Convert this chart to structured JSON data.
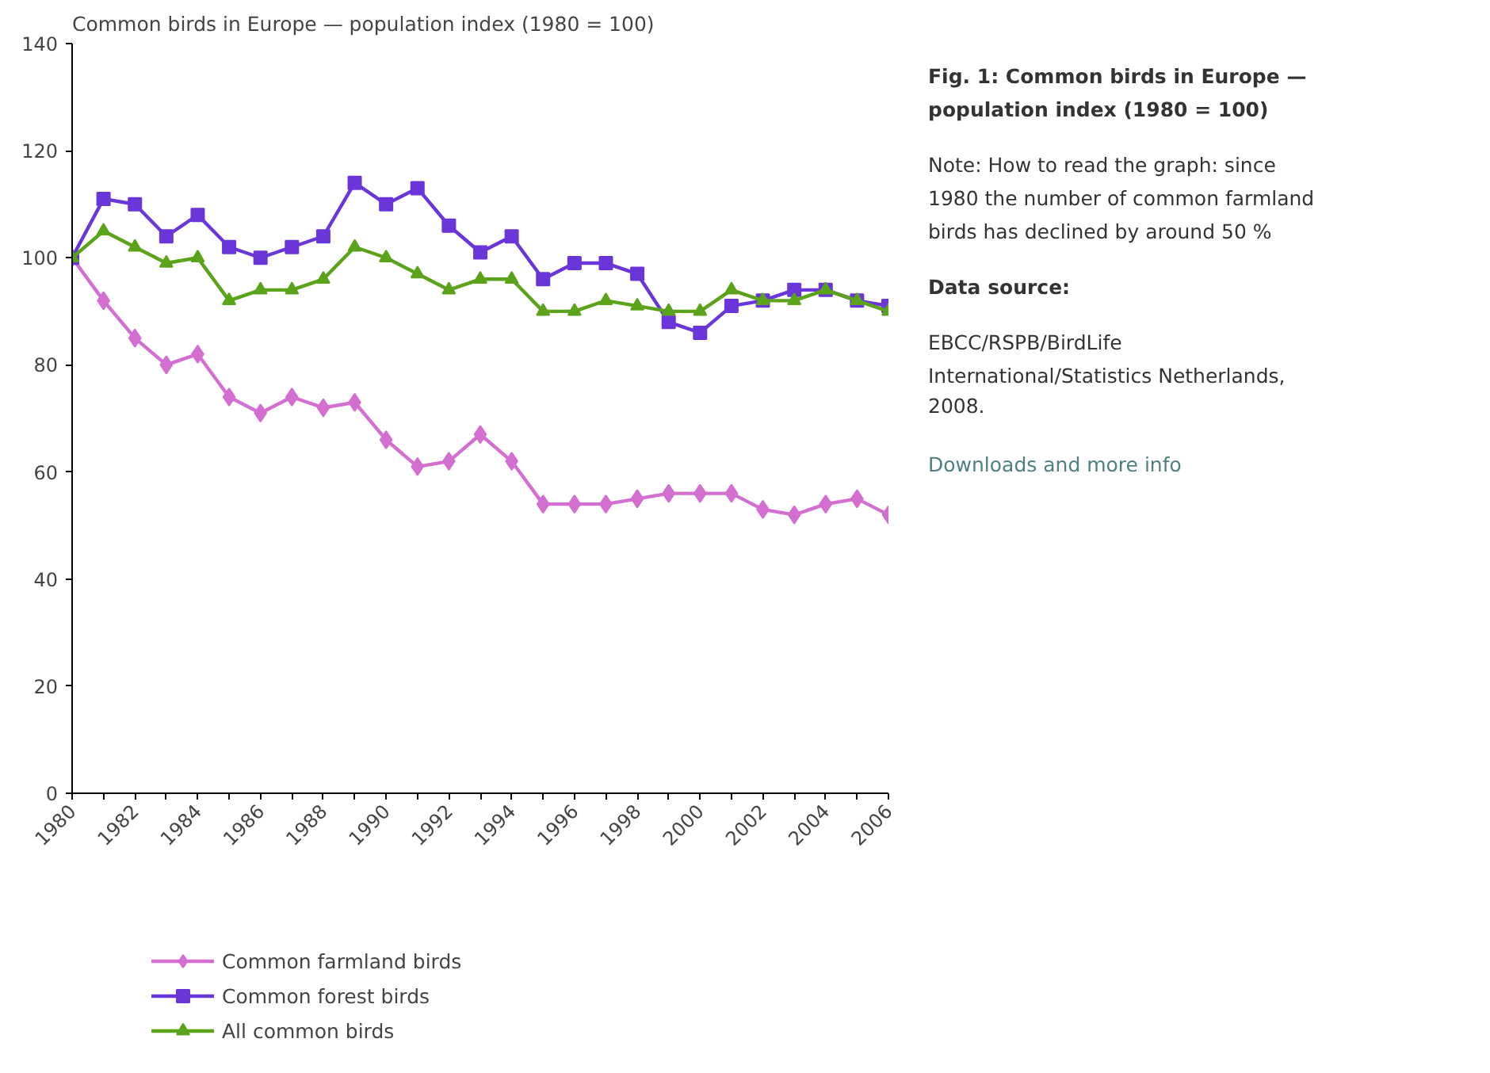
{
  "chart_data": {
    "type": "line",
    "title": "Common birds in Europe — population index (1980 = 100)",
    "subtitle": "Fig. 1: Common birds in Europe — population index (1980 = 100)",
    "x": [
      1980,
      1981,
      1982,
      1983,
      1984,
      1985,
      1986,
      1987,
      1988,
      1989,
      1990,
      1991,
      1992,
      1993,
      1994,
      1995,
      1996,
      1997,
      1998,
      1999,
      2000,
      2001,
      2002,
      2003,
      2004,
      2005,
      2006
    ],
    "series": [
      {
        "name": "Common farmland birds",
        "color": "#d36fd0",
        "marker": "diamond",
        "values": [
          100,
          92,
          85,
          80,
          82,
          74,
          71,
          74,
          72,
          73,
          66,
          61,
          62,
          67,
          62,
          54,
          54,
          54,
          55,
          56,
          56,
          56,
          53,
          52,
          54,
          55,
          52
        ]
      },
      {
        "name": "Common forest birds",
        "color": "#6a35d9",
        "marker": "square",
        "values": [
          100,
          111,
          110,
          104,
          108,
          102,
          100,
          102,
          104,
          114,
          110,
          113,
          106,
          101,
          104,
          96,
          99,
          99,
          97,
          88,
          86,
          91,
          92,
          94,
          94,
          92,
          91
        ]
      },
      {
        "name": "All common birds",
        "color": "#5aa31a",
        "marker": "triangle",
        "values": [
          100,
          105,
          102,
          99,
          100,
          92,
          94,
          94,
          96,
          102,
          100,
          97,
          94,
          96,
          96,
          90,
          90,
          92,
          91,
          90,
          90,
          94,
          92,
          92,
          94,
          92,
          90
        ]
      }
    ],
    "xlim": [
      1980,
      2006
    ],
    "ylim": [
      0,
      140
    ],
    "xticks": [
      1980,
      {
        "value": 1981,
        "label": null
      },
      1982,
      {
        "value": 1983,
        "label": null
      },
      1984,
      {
        "value": 1985,
        "label": null
      },
      1986,
      {
        "value": 1987,
        "label": null
      },
      1988,
      {
        "value": 1989,
        "label": null
      },
      1990,
      {
        "value": 1991,
        "label": null
      },
      1992,
      {
        "value": 1993,
        "label": null
      },
      1994,
      {
        "value": 1995,
        "label": null
      },
      1996,
      {
        "value": 1997,
        "label": null
      },
      1998,
      {
        "value": 1999,
        "label": null
      },
      2000,
      {
        "value": 2001,
        "label": null
      },
      2002,
      {
        "value": 2003,
        "label": null
      },
      2004,
      {
        "value": 2005,
        "label": null
      },
      2006
    ],
    "yticks": [
      0,
      20,
      40,
      60,
      80,
      100,
      120,
      140
    ],
    "grid": false,
    "legend": "bottom",
    "line_style": "solid",
    "annotations": [
      "Note: How to read the graph: since 1980 the number of common farmland birds has declined by around 50 %",
      "Data source:",
      "EBCC/RSPB/BirdLife International/Statistics Netherlands, 2008.",
      "Downloads and more info"
    ]
  }
}
